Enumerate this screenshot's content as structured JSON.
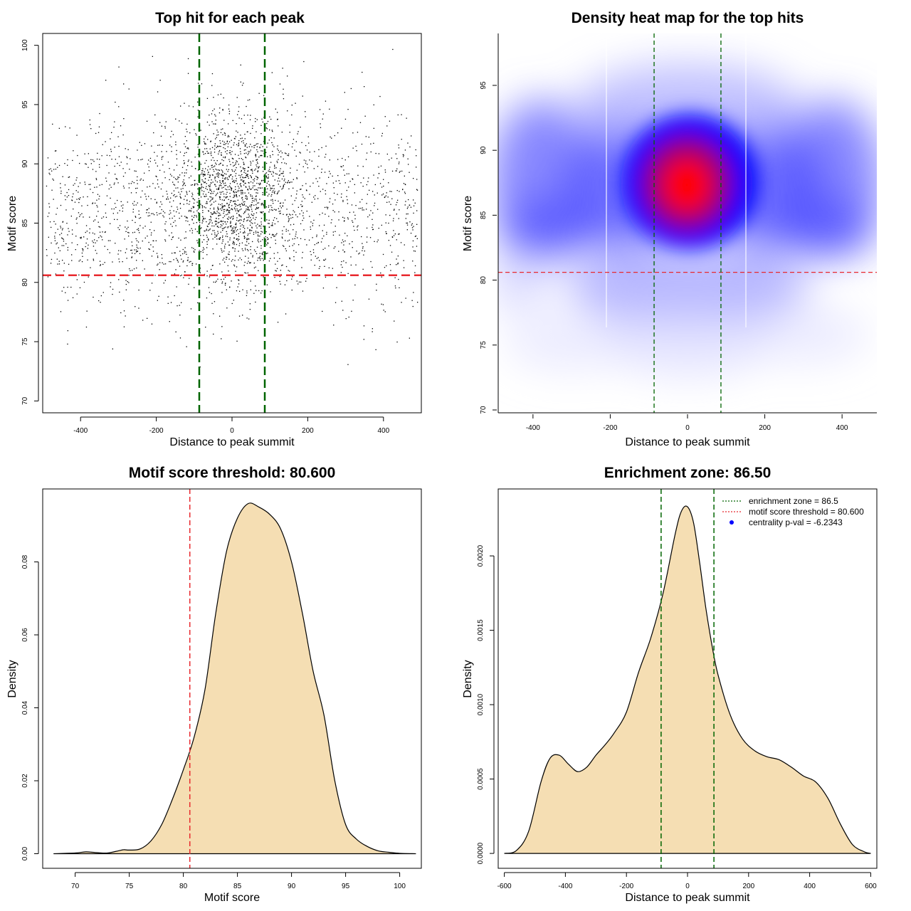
{
  "colors": {
    "green": "#006400",
    "red": "#e8292e",
    "fill": "#f5deb3",
    "heat_low": "#ffffff",
    "heat_mid": "#0000ff",
    "heat_high": "#ff0000",
    "point": "#000000",
    "legend_marker": "#0000ff"
  },
  "chart_data": [
    {
      "type": "scatter",
      "title": "Top hit for each peak",
      "xlabel": "Distance to peak summit",
      "ylabel": "Motif score",
      "xlim": [
        -500,
        500
      ],
      "ylim": [
        69,
        101
      ],
      "xticks": [
        -400,
        -200,
        0,
        200,
        400
      ],
      "yticks": [
        70,
        75,
        80,
        85,
        90,
        95,
        100
      ],
      "threshold_y": 80.6,
      "zone_x": [
        -86.5,
        86.5
      ],
      "point_distribution": {
        "n_points": 3000,
        "central_fraction": 0.45,
        "central_x_mean": 0,
        "central_x_sd": 80,
        "central_y_mean": 87.5,
        "central_y_sd": 3.5,
        "background_y_mean": 86,
        "background_y_sd": 4.2
      }
    },
    {
      "type": "heatmap",
      "title": "Density heat map for the top hits",
      "xlabel": "Distance to peak summit",
      "ylabel": "Motif score",
      "xlim": [
        -490,
        490
      ],
      "ylim": [
        70,
        99
      ],
      "xticks": [
        -400,
        -200,
        0,
        200,
        400
      ],
      "yticks": [
        70,
        75,
        80,
        85,
        90,
        95
      ],
      "threshold_y": 80.6,
      "zone_x": [
        -86.5,
        86.5
      ],
      "density_peak": {
        "x": 5,
        "y": 87.5
      }
    },
    {
      "type": "area",
      "title": "Motif score threshold: 80.600",
      "xlabel": "Motif score",
      "ylabel": "Density",
      "xlim": [
        67,
        102
      ],
      "ylim": [
        -0.004,
        0.1
      ],
      "xticks": [
        70,
        75,
        80,
        85,
        90,
        95,
        100
      ],
      "yticks": [
        0.0,
        0.02,
        0.04,
        0.06,
        0.08
      ],
      "ytick_labels": [
        "0.00",
        "0.02",
        "0.04",
        "0.06",
        "0.08"
      ],
      "threshold_x": 80.6,
      "x": [
        68,
        70,
        71,
        72,
        73,
        74,
        74.5,
        75,
        76,
        77,
        78,
        79,
        80,
        81,
        82,
        83,
        84,
        85,
        86,
        87,
        88,
        89,
        90,
        91,
        92,
        93,
        94,
        95,
        96,
        97,
        98,
        99,
        100,
        101.5
      ],
      "values": [
        0,
        0.0002,
        0.0005,
        0.0003,
        0.0002,
        0.0008,
        0.0011,
        0.001,
        0.0013,
        0.0035,
        0.008,
        0.015,
        0.023,
        0.032,
        0.045,
        0.066,
        0.083,
        0.092,
        0.096,
        0.095,
        0.093,
        0.089,
        0.08,
        0.066,
        0.05,
        0.038,
        0.02,
        0.008,
        0.004,
        0.002,
        0.0008,
        0.0004,
        0.0001,
        0
      ]
    },
    {
      "type": "area",
      "title": "Enrichment zone: 86.50",
      "xlabel": "Distance to peak summit",
      "ylabel": "Density",
      "xlim": [
        -620,
        620
      ],
      "ylim": [
        -0.0001,
        0.00245
      ],
      "xticks": [
        -600,
        -400,
        -200,
        0,
        200,
        400,
        600
      ],
      "yticks": [
        0.0,
        0.0005,
        0.001,
        0.0015,
        0.002
      ],
      "ytick_labels": [
        "0.0000",
        "0.0005",
        "0.0010",
        "0.0015",
        "0.0020"
      ],
      "zone_x": [
        -86.5,
        86.5
      ],
      "x": [
        -600,
        -560,
        -520,
        -480,
        -450,
        -420,
        -390,
        -360,
        -330,
        -300,
        -270,
        -240,
        -200,
        -160,
        -120,
        -80,
        -40,
        -20,
        0,
        20,
        40,
        60,
        80,
        100,
        140,
        180,
        220,
        260,
        300,
        340,
        380,
        420,
        460,
        500,
        540,
        580,
        600
      ],
      "values": [
        0,
        2e-05,
        0.00015,
        0.00048,
        0.00064,
        0.00066,
        0.0006,
        0.00055,
        0.00058,
        0.00066,
        0.00073,
        0.00081,
        0.00095,
        0.00122,
        0.00145,
        0.00175,
        0.00215,
        0.0023,
        0.00233,
        0.00222,
        0.00195,
        0.00165,
        0.0014,
        0.0012,
        0.00093,
        0.00077,
        0.00069,
        0.00065,
        0.00063,
        0.00058,
        0.00052,
        0.00048,
        0.00037,
        0.0002,
        6e-05,
        1e-05,
        0
      ]
    }
  ],
  "legend": [
    {
      "label": "enrichment zone = 86.5",
      "marker": "dotted-green"
    },
    {
      "label": "motif score threshold = 80.600",
      "marker": "dotted-red"
    },
    {
      "label": "centrality p-val = -6.2343",
      "marker": "blue-dot"
    }
  ]
}
